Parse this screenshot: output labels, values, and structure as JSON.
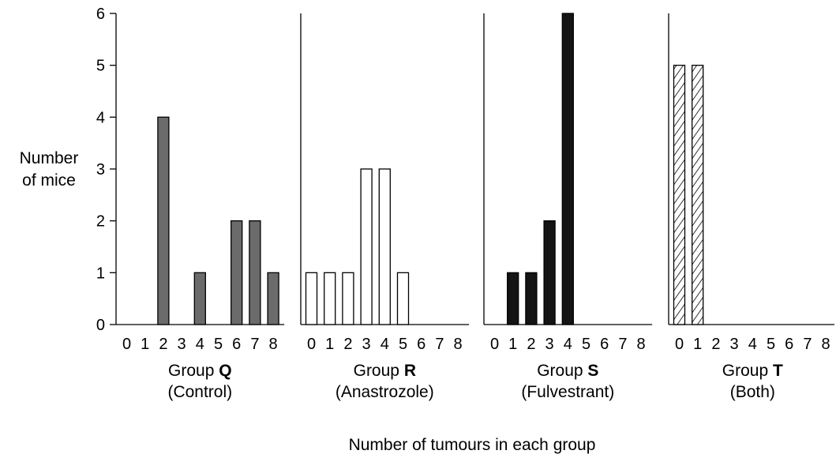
{
  "chart_data": {
    "type": "bar",
    "ylabel": [
      "Number",
      "of mice"
    ],
    "xlabel": "Number of tumours in each group",
    "ylim": [
      0,
      6
    ],
    "yticks": [
      0,
      1,
      2,
      3,
      4,
      5,
      6
    ],
    "categories": [
      "0",
      "1",
      "2",
      "3",
      "4",
      "5",
      "6",
      "7",
      "8"
    ],
    "grid": false,
    "series": [
      {
        "name": "Group Q (Control)",
        "group_prefix": "Group",
        "group_letter": "Q",
        "group_sub": "(Control)",
        "fill": "#6b6b6b",
        "pattern": "solid",
        "values": [
          0,
          0,
          4,
          0,
          1,
          0,
          2,
          2,
          1
        ]
      },
      {
        "name": "Group R (Anastrozole)",
        "group_prefix": "Group",
        "group_letter": "R",
        "group_sub": "(Anastrozole)",
        "fill": "#ffffff",
        "pattern": "solid",
        "values": [
          1,
          1,
          1,
          3,
          3,
          1,
          0,
          0,
          0
        ]
      },
      {
        "name": "Group S (Fulvestrant)",
        "group_prefix": "Group",
        "group_letter": "S",
        "group_sub": "(Fulvestrant)",
        "fill": "#141414",
        "pattern": "solid",
        "values": [
          0,
          1,
          1,
          2,
          6,
          0,
          0,
          0,
          0
        ]
      },
      {
        "name": "Group T (Both)",
        "group_prefix": "Group",
        "group_letter": "T",
        "group_sub": "(Both)",
        "fill": "#ffffff",
        "pattern": "hatch",
        "values": [
          5,
          5,
          0,
          0,
          0,
          0,
          0,
          0,
          0
        ]
      }
    ]
  }
}
